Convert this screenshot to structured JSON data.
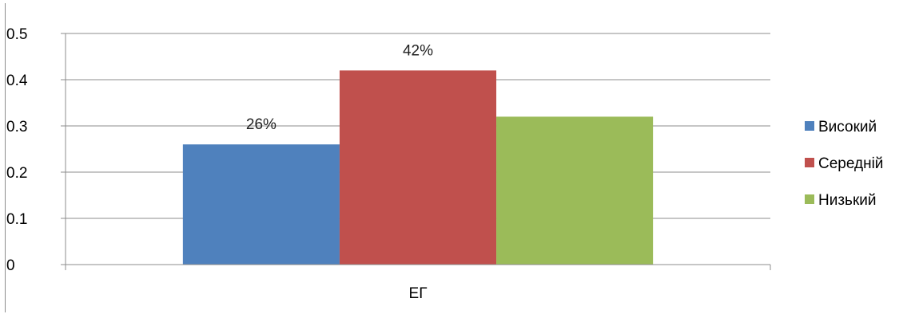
{
  "chart_data": {
    "type": "bar",
    "categories": [
      "ЕГ"
    ],
    "series": [
      {
        "name": "Високий",
        "values": [
          0.26
        ],
        "color": "#4f81bd",
        "data_label": "26%"
      },
      {
        "name": "Середній",
        "values": [
          0.42
        ],
        "color": "#c0504d",
        "data_label": "42%"
      },
      {
        "name": "Низький",
        "values": [
          0.32
        ],
        "color": "#9bbb59",
        "data_label": ""
      }
    ],
    "ylim": [
      0,
      0.5
    ],
    "yticks": [
      "0",
      "0.1",
      "0.2",
      "0.3",
      "0.4",
      "0.5"
    ],
    "grid": true,
    "legend_position": "right",
    "title": "",
    "xlabel": "",
    "ylabel": ""
  }
}
